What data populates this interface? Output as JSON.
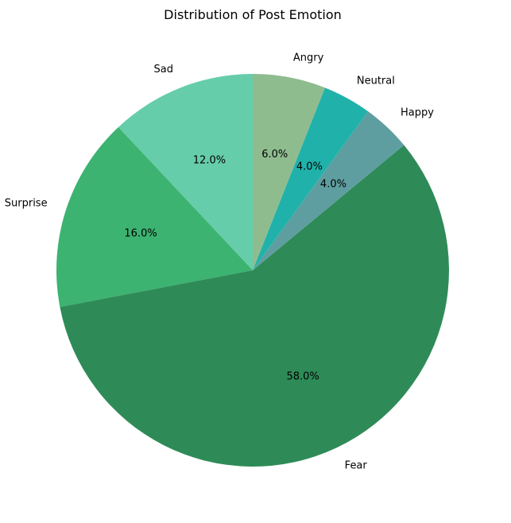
{
  "chart_data": {
    "type": "pie",
    "title": "Distribution of Post Emotion",
    "start_angle_deg": 90,
    "direction": "counterclockwise",
    "slices": [
      {
        "label": "Sad",
        "value": 12.0,
        "pct_label": "12.0%",
        "color": "#66CDAA"
      },
      {
        "label": "Surprise",
        "value": 16.0,
        "pct_label": "16.0%",
        "color": "#3CB371"
      },
      {
        "label": "Fear",
        "value": 58.0,
        "pct_label": "58.0%",
        "color": "#2E8B57"
      },
      {
        "label": "Happy",
        "value": 4.0,
        "pct_label": "4.0%",
        "color": "#5F9EA0"
      },
      {
        "label": "Neutral",
        "value": 4.0,
        "pct_label": "4.0%",
        "color": "#20B2AA"
      },
      {
        "label": "Angry",
        "value": 6.0,
        "pct_label": "6.0%",
        "color": "#8FBC8F"
      }
    ]
  }
}
